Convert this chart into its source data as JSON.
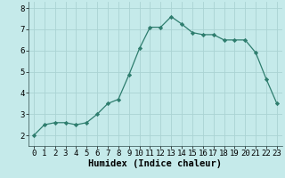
{
  "x": [
    0,
    1,
    2,
    3,
    4,
    5,
    6,
    7,
    8,
    9,
    10,
    11,
    12,
    13,
    14,
    15,
    16,
    17,
    18,
    19,
    20,
    21,
    22,
    23
  ],
  "y": [
    2.0,
    2.5,
    2.6,
    2.6,
    2.5,
    2.6,
    3.0,
    3.5,
    3.7,
    4.85,
    6.1,
    7.1,
    7.1,
    7.6,
    7.25,
    6.85,
    6.75,
    6.75,
    6.5,
    6.5,
    6.5,
    5.9,
    4.65,
    3.5
  ],
  "line_color": "#2e7d6e",
  "marker": "D",
  "marker_size": 2.2,
  "bg_color": "#c5eaea",
  "grid_color": "#aad3d3",
  "xlabel": "Humidex (Indice chaleur)",
  "xlabel_fontsize": 7.5,
  "tick_fontsize": 6.5,
  "ylim": [
    1.5,
    8.3
  ],
  "xlim": [
    -0.5,
    23.5
  ],
  "yticks": [
    2,
    3,
    4,
    5,
    6,
    7,
    8
  ],
  "xticks": [
    0,
    1,
    2,
    3,
    4,
    5,
    6,
    7,
    8,
    9,
    10,
    11,
    12,
    13,
    14,
    15,
    16,
    17,
    18,
    19,
    20,
    21,
    22,
    23
  ]
}
